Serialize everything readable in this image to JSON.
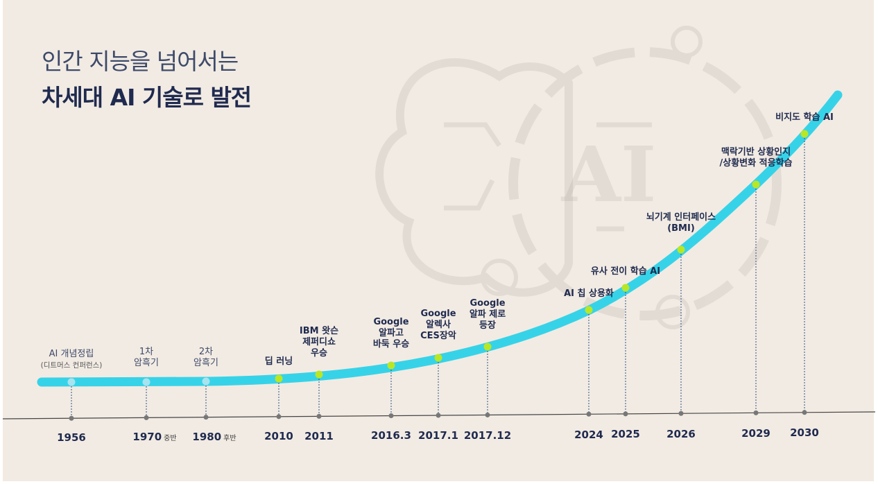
{
  "title": {
    "line1": "인간 지능을 넘어서는",
    "line2": "차세대 AI 기술로 발전"
  },
  "colors": {
    "curve": "#36d3e8",
    "dot_past": "#a8e3f0",
    "dot_future": "#b9e625",
    "tick": "#777777",
    "text": "#1f2a4f"
  },
  "milestones": [
    {
      "year": "1956",
      "suffix": "",
      "label": "AI 개념정립",
      "sub": "(디트머스 컨퍼런스)",
      "style": "past"
    },
    {
      "year": "1970",
      "suffix": "중반",
      "label": "1차\n암흑기",
      "sub": "",
      "style": "past"
    },
    {
      "year": "1980",
      "suffix": "후반",
      "label": "2차\n암흑기",
      "sub": "",
      "style": "past"
    },
    {
      "year": "2010",
      "suffix": "",
      "label": "딥 러닝",
      "sub": "",
      "style": "future"
    },
    {
      "year": "2011",
      "suffix": "",
      "label": "IBM 왓슨\n제퍼디쇼\n우승",
      "sub": "",
      "style": "future"
    },
    {
      "year": "2016.3",
      "suffix": "",
      "label": "Google\n알파고\n바둑 우승",
      "sub": "",
      "style": "future"
    },
    {
      "year": "2017.1",
      "suffix": "",
      "label": "Google\n알렉사\nCES장악",
      "sub": "",
      "style": "future"
    },
    {
      "year": "2017.12",
      "suffix": "",
      "label": "Google\n알파 제로\n등장",
      "sub": "",
      "style": "future"
    },
    {
      "year": "2024",
      "suffix": "",
      "label": "AI 칩 상용화",
      "sub": "",
      "style": "future"
    },
    {
      "year": "2025",
      "suffix": "",
      "label": "유사 전이 학습 AI",
      "sub": "",
      "style": "future"
    },
    {
      "year": "2026",
      "suffix": "",
      "label": "뇌기계 인터페이스\n(BMI)",
      "sub": "",
      "style": "future"
    },
    {
      "year": "2029",
      "suffix": "",
      "label": "맥락기반 상황인지\n/상황변화 적응학습",
      "sub": "",
      "style": "future"
    },
    {
      "year": "2030",
      "suffix": "",
      "label": "비지도 학습 AI",
      "sub": "",
      "style": "future"
    }
  ],
  "watermark": {
    "text": "AI",
    "icon": "brain-gear-icon"
  }
}
